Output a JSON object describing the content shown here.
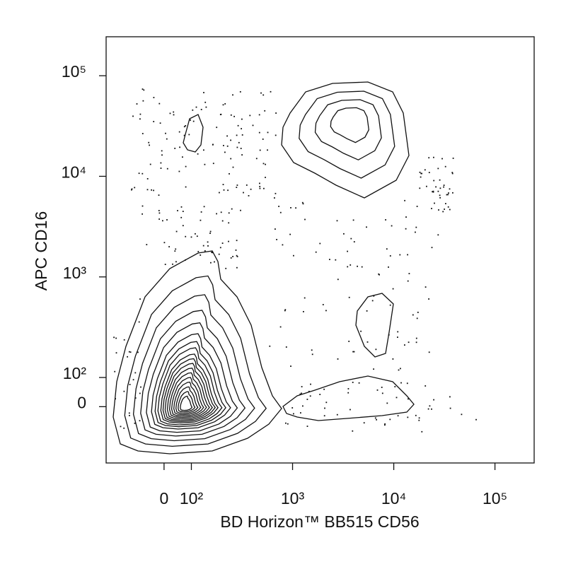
{
  "chart_data": {
    "type": "contour",
    "x_label": "BD Horizon™ BB515 CD56",
    "y_label": "APC CD16",
    "xscale": "biexponential",
    "yscale": "biexponential",
    "xlim": [
      -212,
      244000
    ],
    "ylim": [
      -193,
      244000
    ],
    "xticks": [
      0,
      {
        "value": 100,
        "label": "10²"
      },
      {
        "value": 1000,
        "label": "10³"
      },
      {
        "value": 10000,
        "label": "10⁴"
      },
      {
        "value": 100000,
        "label": "10⁵"
      }
    ],
    "yticks": [
      0,
      {
        "value": 100,
        "label": "10²"
      },
      {
        "value": 1000,
        "label": "10³"
      },
      {
        "value": 10000,
        "label": "10⁴"
      },
      {
        "value": 100000,
        "label": "10⁵"
      }
    ],
    "color": "#111111"
  }
}
